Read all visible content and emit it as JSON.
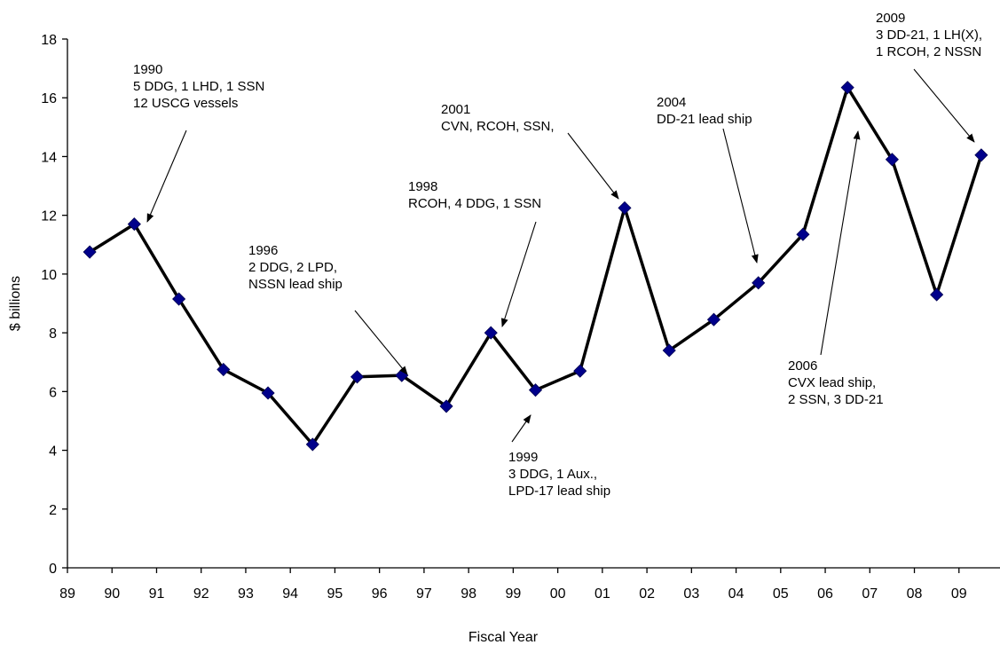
{
  "chart_data": {
    "type": "line",
    "title": "",
    "xlabel": "Fiscal Year",
    "ylabel": "$ billions",
    "ylim": [
      0,
      18
    ],
    "yticks": [
      "0",
      "2",
      "4",
      "6",
      "8",
      "10",
      "12",
      "14",
      "16",
      "18"
    ],
    "xticks": [
      "89",
      "90",
      "91",
      "92",
      "93",
      "94",
      "95",
      "96",
      "97",
      "98",
      "99",
      "00",
      "01",
      "02",
      "03",
      "04",
      "05",
      "06",
      "07",
      "08",
      "09"
    ],
    "grid": false,
    "legend": "none",
    "colors": {
      "line": "#000000",
      "marker": "#00008b"
    },
    "series": [
      {
        "x": [
          "89",
          "90",
          "91",
          "92",
          "93",
          "94",
          "95",
          "96",
          "97",
          "98",
          "99",
          "00",
          "01",
          "02",
          "03",
          "04",
          "05",
          "06",
          "07",
          "08",
          "09"
        ],
        "values": [
          10.75,
          11.7,
          9.15,
          6.75,
          5.95,
          4.2,
          6.5,
          6.55,
          5.5,
          8.0,
          6.05,
          6.7,
          12.25,
          7.4,
          8.45,
          9.7,
          11.35,
          16.35,
          13.9,
          9.3,
          14.05
        ]
      }
    ],
    "annotations": [
      {
        "lines": [
          "1990",
          "5 DDG, 1 LHD, 1 SSN",
          "12 USCG vessels"
        ],
        "target": "90"
      },
      {
        "lines": [
          "1996",
          "2 DDG, 2 LPD,",
          "NSSN lead ship"
        ],
        "target": "96"
      },
      {
        "lines": [
          "1998",
          "RCOH, 4 DDG, 1 SSN"
        ],
        "target": "98"
      },
      {
        "lines": [
          "1999",
          "3 DDG, 1 Aux.,",
          "LPD-17 lead ship"
        ],
        "target": "99"
      },
      {
        "lines": [
          "2001",
          "CVN, RCOH, SSN,"
        ],
        "target": "01"
      },
      {
        "lines": [
          "2004",
          "DD-21 lead ship"
        ],
        "target": "04"
      },
      {
        "lines": [
          "2006",
          "CVX lead ship,",
          "2 SSN, 3 DD-21"
        ],
        "target": "06"
      },
      {
        "lines": [
          "2009",
          "3 DD-21, 1 LH(X),",
          "1 RCOH, 2 NSSN"
        ],
        "target": "09"
      }
    ]
  }
}
